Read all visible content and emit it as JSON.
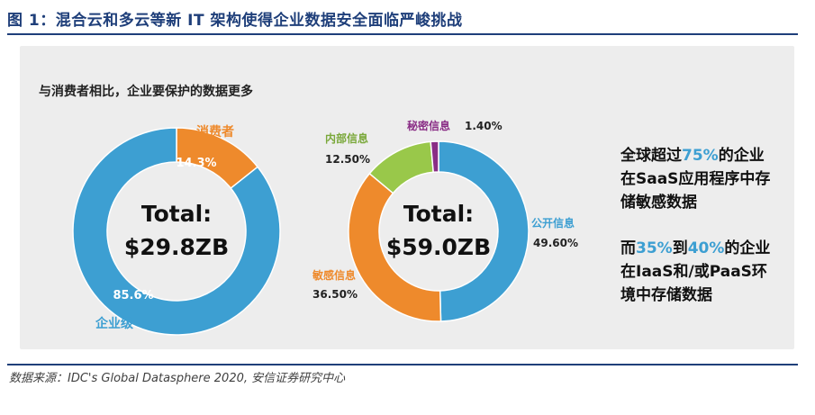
{
  "figure_title": "图 1：混合云和多云等新 IT 架构使得企业数据安全面临严峻挑战",
  "source": "数据来源：IDC's Global Datasphere 2020, 安信证券研究中心",
  "chart_data": [
    {
      "type": "pie",
      "subtitle": "与消费者相比，企业要保护的数据更多",
      "center_label": "Total:",
      "center_value": "$29.8ZB",
      "slices": [
        {
          "name": "消费者",
          "value": 14.3,
          "label": "14.3%",
          "color": "#ee8a2c"
        },
        {
          "name": "企业级",
          "value": 85.6,
          "label": "85.6%",
          "color": "#3d9fd2"
        }
      ]
    },
    {
      "type": "pie",
      "center_label": "Total:",
      "center_value": "$59.0ZB",
      "slices": [
        {
          "name": "公开信息",
          "value": 49.6,
          "label": "49.60%",
          "color": "#3d9fd2"
        },
        {
          "name": "敏感信息",
          "value": 36.5,
          "label": "36.50%",
          "color": "#ee8a2c"
        },
        {
          "name": "内部信息",
          "value": 12.5,
          "label": "12.50%",
          "color": "#99c84a"
        },
        {
          "name": "秘密信息",
          "value": 1.4,
          "label": "1.40%",
          "color": "#8a2e86"
        }
      ]
    }
  ],
  "notes": {
    "note1": {
      "pre": "全球超过",
      "hl": "75%",
      "post1": "的企业",
      "line2": "在SaaS应用程序中存",
      "line3": "储敏感数据"
    },
    "note2": {
      "pre": "而",
      "hl1": "35%",
      "mid": "到",
      "hl2": "40%",
      "post1": "的企业",
      "line2": "在IaaS和/或PaaS环",
      "line3": "境中存储数据"
    },
    "highlight_color": "#3d9fd2"
  }
}
